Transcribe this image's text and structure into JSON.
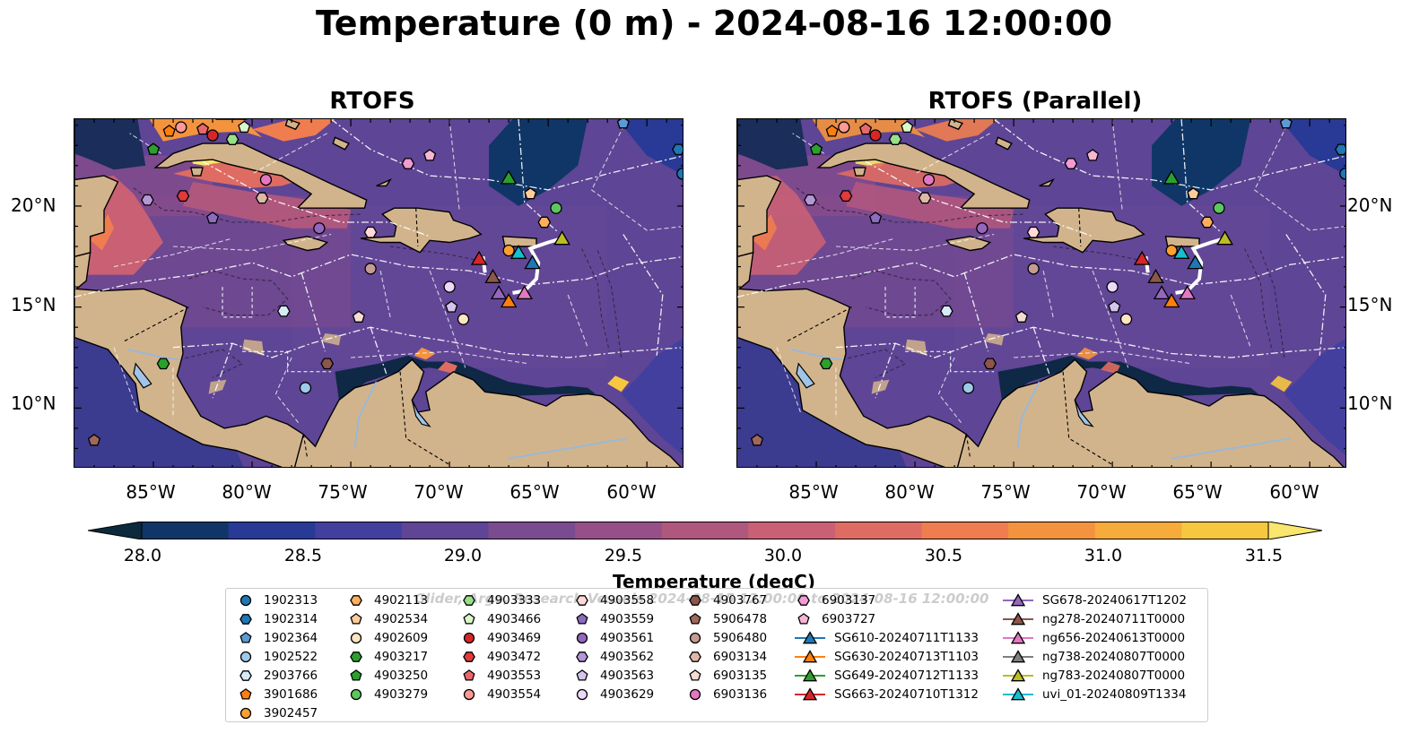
{
  "title": "Temperature (0 m) - 2024-08-16 12:00:00",
  "panels": [
    {
      "title": "RTOFS"
    },
    {
      "title": "RTOFS (Parallel)"
    }
  ],
  "lat_labels": [
    "20°N",
    "15°N",
    "10°N"
  ],
  "lon_labels": [
    "85°W",
    "80°W",
    "75°W",
    "70°W",
    "65°W",
    "60°W"
  ],
  "colorbar": {
    "label": "Temperature (degC)",
    "ticks": [
      "28.0",
      "28.5",
      "29.0",
      "29.5",
      "30.0",
      "30.5",
      "31.0",
      "31.5"
    ],
    "min": 28.0,
    "max": 31.5,
    "colors": [
      "#0c2a3c",
      "#0f3666",
      "#283996",
      "#433f9f",
      "#5e4595",
      "#7a4b8f",
      "#974f88",
      "#b0577e",
      "#c96074",
      "#df6c62",
      "#ef7d4f",
      "#f4933e",
      "#f6ab3a",
      "#f7c740",
      "#f9e66e"
    ]
  },
  "colors": {
    "land": "#d2b48c",
    "lake": "#a0c4e8",
    "sea_base": "#5e4595"
  },
  "watermark": "Glider, Argo, Research Vessels 2024-08-15 12:00:00 to 2024-08-16 12:00:00",
  "legend": {
    "columns": [
      [
        {
          "label": "1902313",
          "marker": "circle",
          "color": "#1f77b4"
        },
        {
          "label": "1902314",
          "marker": "hexagon",
          "color": "#1f77b4"
        },
        {
          "label": "1902364",
          "marker": "pentagon",
          "color": "#5b9bd5"
        },
        {
          "label": "1902522",
          "marker": "circle",
          "color": "#9ecae9"
        },
        {
          "label": "2903766",
          "marker": "hexagon",
          "color": "#d6eaf8"
        },
        {
          "label": "3901686",
          "marker": "pentagon",
          "color": "#ff7f0e"
        },
        {
          "label": "3902457",
          "marker": "circle",
          "color": "#ff9f2e"
        }
      ],
      [
        {
          "label": "4902113",
          "marker": "hexagon",
          "color": "#ffae5e"
        },
        {
          "label": "4902534",
          "marker": "pentagon",
          "color": "#ffcc99"
        },
        {
          "label": "4902609",
          "marker": "circle",
          "color": "#ffe4c4"
        },
        {
          "label": "4903217",
          "marker": "hexagon",
          "color": "#2ca02c"
        },
        {
          "label": "4903250",
          "marker": "pentagon",
          "color": "#2ca02c"
        },
        {
          "label": "4903279",
          "marker": "circle",
          "color": "#5cc85c"
        }
      ],
      [
        {
          "label": "4903333",
          "marker": "hexagon",
          "color": "#98df8a"
        },
        {
          "label": "4903466",
          "marker": "pentagon",
          "color": "#d9f7c9"
        },
        {
          "label": "4903469",
          "marker": "circle",
          "color": "#d62728"
        },
        {
          "label": "4903472",
          "marker": "hexagon",
          "color": "#e03a3a"
        },
        {
          "label": "4903553",
          "marker": "pentagon",
          "color": "#e8676a"
        },
        {
          "label": "4903554",
          "marker": "circle",
          "color": "#ff9896"
        }
      ],
      [
        {
          "label": "4903558",
          "marker": "hexagon",
          "color": "#ffd9d8"
        },
        {
          "label": "4903559",
          "marker": "pentagon",
          "color": "#8c6bc0"
        },
        {
          "label": "4903561",
          "marker": "circle",
          "color": "#9467bd"
        },
        {
          "label": "4903562",
          "marker": "hexagon",
          "color": "#b497d6"
        },
        {
          "label": "4903563",
          "marker": "pentagon",
          "color": "#d5c4ec"
        },
        {
          "label": "4903629",
          "marker": "circle",
          "color": "#ead9f7"
        }
      ],
      [
        {
          "label": "4903767",
          "marker": "hexagon",
          "color": "#8c564b"
        },
        {
          "label": "5906478",
          "marker": "pentagon",
          "color": "#a0685c"
        },
        {
          "label": "5906480",
          "marker": "circle",
          "color": "#c49c94"
        },
        {
          "label": "6903134",
          "marker": "hexagon",
          "color": "#e0b8a8"
        },
        {
          "label": "6903135",
          "marker": "pentagon",
          "color": "#f4dcd0"
        },
        {
          "label": "6903136",
          "marker": "circle",
          "color": "#e377c2"
        }
      ],
      [
        {
          "label": "6903137",
          "marker": "hexagon",
          "color": "#f29ad3"
        },
        {
          "label": "6903727",
          "marker": "pentagon",
          "color": "#f7b6d2"
        },
        {
          "label": "SG610-20240711T1133",
          "marker": "triangle",
          "color": "#1f77b4"
        },
        {
          "label": "SG630-20240713T1103",
          "marker": "triangle",
          "color": "#ff7f0e"
        },
        {
          "label": "SG649-20240712T1133",
          "marker": "triangle",
          "color": "#2ca02c"
        },
        {
          "label": "SG663-20240710T1312",
          "marker": "triangle",
          "color": "#d62728"
        }
      ],
      [
        {
          "label": "SG678-20240617T1202",
          "marker": "triangle",
          "color": "#9467bd"
        },
        {
          "label": "ng278-20240711T0000",
          "marker": "triangle",
          "color": "#8c564b"
        },
        {
          "label": "ng656-20240613T0000",
          "marker": "triangle",
          "color": "#e377c2"
        },
        {
          "label": "ng738-20240807T0000",
          "marker": "triangle",
          "color": "#7f7f7f"
        },
        {
          "label": "ng783-20240807T0000",
          "marker": "triangle",
          "color": "#bcbd22"
        },
        {
          "label": "uvi_01-20240809T1334",
          "marker": "triangle",
          "color": "#17becf"
        }
      ]
    ]
  },
  "observations": [
    {
      "id": "1902313",
      "lon": -58.2,
      "lat": 21.6
    },
    {
      "id": "1902314",
      "lon": -58.4,
      "lat": 22.8
    },
    {
      "id": "1902364",
      "lon": -61.2,
      "lat": 24.1
    },
    {
      "id": "1902522",
      "lon": -77.3,
      "lat": 11.0
    },
    {
      "id": "2903766",
      "lon": -78.4,
      "lat": 14.8
    },
    {
      "id": "3901686",
      "lon": -84.2,
      "lat": 23.7
    },
    {
      "id": "3902457",
      "lon": -67.0,
      "lat": 17.8
    },
    {
      "id": "4902113",
      "lon": -65.2,
      "lat": 19.2
    },
    {
      "id": "4902534",
      "lon": -65.9,
      "lat": 20.6
    },
    {
      "id": "4902609",
      "lon": -69.3,
      "lat": 14.4
    },
    {
      "id": "4903217",
      "lon": -84.5,
      "lat": 12.2
    },
    {
      "id": "4903250",
      "lon": -85.0,
      "lat": 22.8
    },
    {
      "id": "4903279",
      "lon": -64.6,
      "lat": 19.9
    },
    {
      "id": "4903333",
      "lon": -81.0,
      "lat": 23.3
    },
    {
      "id": "4903466",
      "lon": -80.4,
      "lat": 23.9
    },
    {
      "id": "4903469",
      "lon": -82.0,
      "lat": 23.5
    },
    {
      "id": "4903472",
      "lon": -83.5,
      "lat": 20.5
    },
    {
      "id": "4903553",
      "lon": -82.5,
      "lat": 23.8
    },
    {
      "id": "4903554",
      "lon": -83.6,
      "lat": 23.9
    },
    {
      "id": "4903558",
      "lon": -74.0,
      "lat": 18.7
    },
    {
      "id": "4903559",
      "lon": -82.0,
      "lat": 19.4
    },
    {
      "id": "4903561",
      "lon": -76.6,
      "lat": 18.9
    },
    {
      "id": "4903562",
      "lon": -85.3,
      "lat": 20.3
    },
    {
      "id": "4903563",
      "lon": -69.9,
      "lat": 15.0
    },
    {
      "id": "4903629",
      "lon": -70.0,
      "lat": 16.0
    },
    {
      "id": "4903767",
      "lon": -76.2,
      "lat": 12.2
    },
    {
      "id": "5906478",
      "lon": -88.0,
      "lat": 8.4
    },
    {
      "id": "5906480",
      "lon": -74.0,
      "lat": 16.9
    },
    {
      "id": "6903134",
      "lon": -79.5,
      "lat": 20.4
    },
    {
      "id": "6903135",
      "lon": -74.6,
      "lat": 14.5
    },
    {
      "id": "6903136",
      "lon": -79.3,
      "lat": 21.3
    },
    {
      "id": "6903137",
      "lon": -72.1,
      "lat": 22.1
    },
    {
      "id": "6903727",
      "lon": -71.0,
      "lat": 22.5
    },
    {
      "id": "SG610-20240711T1133",
      "lon": -65.8,
      "lat": 17.2
    },
    {
      "id": "SG630-20240713T1103",
      "lon": -67.0,
      "lat": 15.3
    },
    {
      "id": "SG649-20240712T1133",
      "lon": -67.0,
      "lat": 21.4
    },
    {
      "id": "SG663-20240710T1312",
      "lon": -68.5,
      "lat": 17.4
    },
    {
      "id": "SG678-20240617T1202",
      "lon": -67.5,
      "lat": 15.7
    },
    {
      "id": "ng278-20240711T0000",
      "lon": -67.8,
      "lat": 16.5
    },
    {
      "id": "ng656-20240613T0000",
      "lon": -66.2,
      "lat": 15.7
    },
    {
      "id": "ng738-20240807T0000",
      "lon": -64.3,
      "lat": 18.4
    },
    {
      "id": "ng783-20240807T0000",
      "lon": -64.3,
      "lat": 18.4
    },
    {
      "id": "uvi_01-20240809T1334",
      "lon": -66.5,
      "lat": 17.7
    }
  ]
}
